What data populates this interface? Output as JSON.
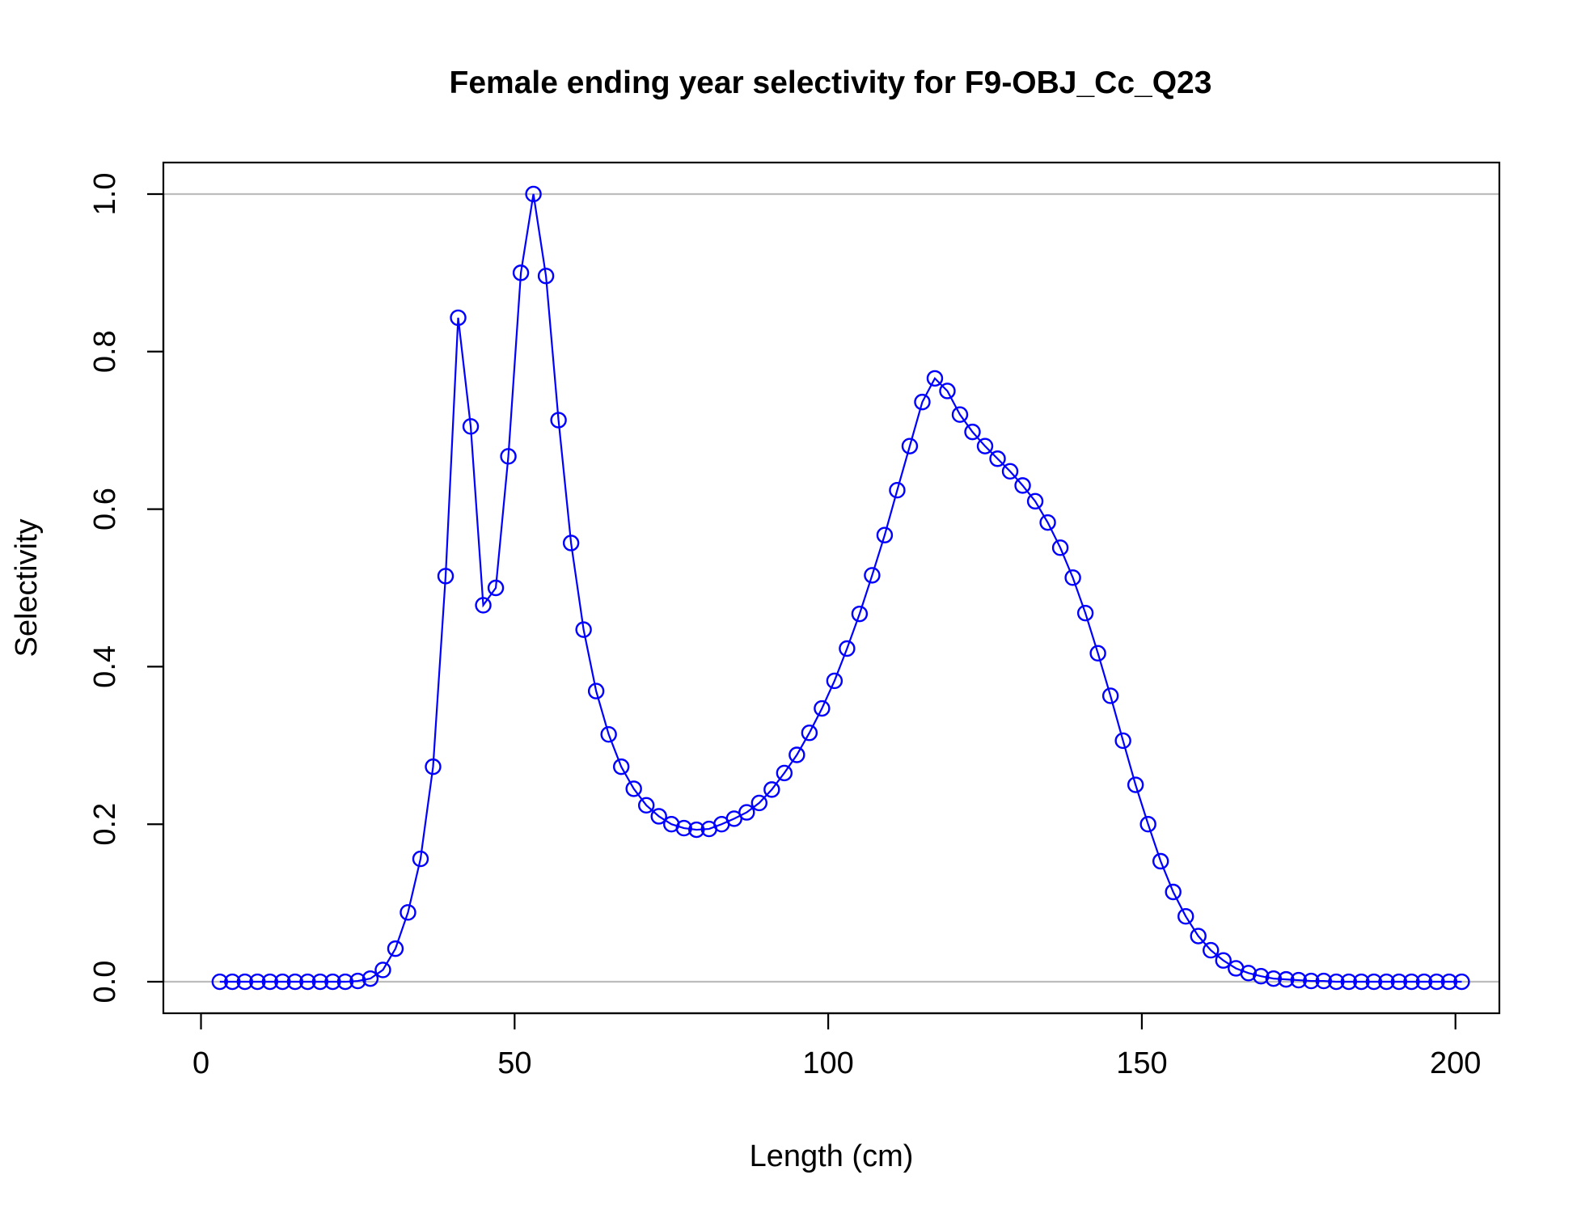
{
  "chart_data": {
    "type": "line",
    "title": "Female ending year selectivity for F9-OBJ_Cc_Q23",
    "xlabel": "Length (cm)",
    "ylabel": "Selectivity",
    "xlim": [
      -6,
      207
    ],
    "ylim": [
      -0.04,
      1.04
    ],
    "x_ticks": [
      0,
      50,
      100,
      150,
      200
    ],
    "y_ticks": [
      0.0,
      0.2,
      0.4,
      0.6,
      0.8,
      1.0
    ],
    "x_tick_labels": [
      "0",
      "50",
      "100",
      "150",
      "200"
    ],
    "y_tick_labels": [
      "0.0",
      "0.2",
      "0.4",
      "0.6",
      "0.8",
      "1.0"
    ],
    "reference_lines": [
      0,
      1
    ],
    "grid": false,
    "legend": "none",
    "colors": {
      "series": "#0000ff",
      "reference": "#bdbdbd"
    },
    "series": [
      {
        "x": [
          3,
          5,
          7,
          9,
          11,
          13,
          15,
          17,
          19,
          21,
          23,
          25,
          27,
          29,
          31,
          33,
          35,
          37,
          39,
          41,
          43,
          45,
          47,
          49,
          51,
          53,
          55,
          57,
          59,
          61,
          63,
          65,
          67,
          69,
          71,
          73,
          75,
          77,
          79,
          81,
          83,
          85,
          87,
          89,
          91,
          93,
          95,
          97,
          99,
          101,
          103,
          105,
          107,
          109,
          111,
          113,
          115,
          117,
          119,
          121,
          123,
          125,
          127,
          129,
          131,
          133,
          135,
          137,
          139,
          141,
          143,
          145,
          147,
          149,
          151,
          153,
          155,
          157,
          159,
          161,
          163,
          165,
          167,
          169,
          171,
          173,
          175,
          177,
          179,
          181,
          183,
          185,
          187,
          189,
          191,
          193,
          195,
          197,
          199,
          201
        ],
        "values": [
          0,
          0,
          0,
          0,
          0,
          0,
          0,
          0,
          0,
          0,
          0,
          0.001,
          0.004,
          0.015,
          0.042,
          0.088,
          0.156,
          0.273,
          0.515,
          0.843,
          0.705,
          0.478,
          0.5,
          0.667,
          0.9,
          1.0,
          0.896,
          0.713,
          0.557,
          0.447,
          0.369,
          0.314,
          0.273,
          0.245,
          0.224,
          0.21,
          0.2,
          0.195,
          0.193,
          0.194,
          0.2,
          0.207,
          0.215,
          0.227,
          0.244,
          0.265,
          0.288,
          0.316,
          0.347,
          0.382,
          0.423,
          0.467,
          0.516,
          0.567,
          0.624,
          0.68,
          0.736,
          0.766,
          0.75,
          0.72,
          0.698,
          0.68,
          0.664,
          0.648,
          0.63,
          0.61,
          0.583,
          0.551,
          0.513,
          0.468,
          0.417,
          0.363,
          0.306,
          0.25,
          0.2,
          0.153,
          0.114,
          0.083,
          0.058,
          0.04,
          0.027,
          0.017,
          0.011,
          0.007,
          0.004,
          0.003,
          0.002,
          0.001,
          0.001,
          0,
          0,
          0,
          0,
          0,
          0,
          0,
          0,
          0,
          0,
          0
        ]
      }
    ]
  }
}
